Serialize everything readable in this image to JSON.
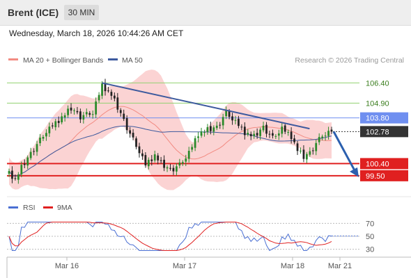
{
  "header": {
    "instrument": "Brent (ICE)",
    "timeframe": "30 MIN",
    "timestamp": "Wednesday, March 18, 2026 10:44:26 AM CET"
  },
  "legend": {
    "ma20": {
      "label": "MA 20 + Bollinger Bands",
      "color": "#f28b82"
    },
    "ma50": {
      "label": "MA 50",
      "color": "#3d5a9e"
    },
    "source": "Research © 2026 Trading Central"
  },
  "rsi_legend": {
    "rsi": {
      "label": "RSI",
      "color": "#4a6fd3"
    },
    "ma9": {
      "label": "9MA",
      "color": "#e02020"
    }
  },
  "colors": {
    "bullish": "#2a8a2a",
    "bearish": "#222222",
    "band": "#f9c4c4",
    "resistance_green": "#8fd16f",
    "pivot_blue": "#6f8ff0",
    "support_red": "#e02020",
    "trendline": "#3d5a9e"
  },
  "chart_data": [
    {
      "type": "candlestick",
      "title": "Brent (ICE)",
      "timeframe": "30 MIN",
      "ylim": [
        98.2,
        107.5
      ],
      "x_ticks": [
        "Mar 16",
        "Mar 17",
        "Mar 18",
        "Mar 21"
      ],
      "last_price": 102.78,
      "levels": [
        {
          "value": 106.4,
          "label": "106.40",
          "kind": "resistance"
        },
        {
          "value": 104.9,
          "label": "104.90",
          "kind": "resistance"
        },
        {
          "value": 103.8,
          "label": "103.80",
          "kind": "pivot"
        },
        {
          "value": 102.78,
          "label": "102.78",
          "kind": "last"
        },
        {
          "value": 100.4,
          "label": "100.40",
          "kind": "support"
        },
        {
          "value": 99.5,
          "label": "99.50",
          "kind": "support"
        }
      ],
      "trendline": {
        "from": {
          "index": 30,
          "price": 106.4
        },
        "to": {
          "index": 96,
          "price": 103.0
        }
      },
      "projection": {
        "from_price": 102.78,
        "to_price": 99.5
      },
      "series": [
        {
          "name": "MA 20 + Bollinger Bands",
          "indicator": "ma20_bollinger"
        },
        {
          "name": "MA 50",
          "indicator": "ma50"
        }
      ]
    },
    {
      "type": "line",
      "panel": "RSI",
      "ylim": [
        20,
        80
      ],
      "y_ticks": [
        70,
        50,
        30
      ],
      "series": [
        {
          "name": "RSI",
          "indicator": "rsi14"
        },
        {
          "name": "9MA",
          "indicator": "ma9_of_rsi"
        }
      ]
    }
  ]
}
